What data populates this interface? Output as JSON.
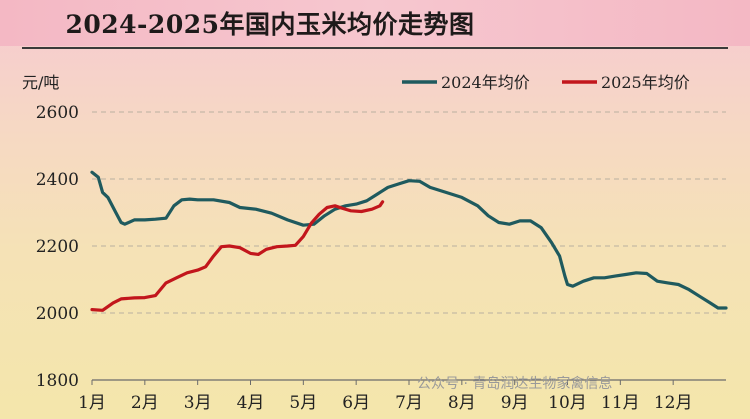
{
  "chart_data": {
    "type": "line",
    "title": "2024-2025年国内玉米均价走势图",
    "ylabel": "元/吨",
    "ylim": [
      1800,
      2600
    ],
    "yticks": [
      1800,
      2000,
      2200,
      2400,
      2600
    ],
    "categories": [
      "1月",
      "2月",
      "3月",
      "4月",
      "5月",
      "6月",
      "7月",
      "8月",
      "9月",
      "10月",
      "11月",
      "12月"
    ],
    "grid": true,
    "legend_position": "top-right",
    "series": [
      {
        "name": "2024年均价",
        "color": "#1f5a5e",
        "points": [
          [
            1.0,
            2420
          ],
          [
            1.12,
            2405
          ],
          [
            1.2,
            2360
          ],
          [
            1.3,
            2345
          ],
          [
            1.45,
            2300
          ],
          [
            1.55,
            2270
          ],
          [
            1.62,
            2265
          ],
          [
            1.8,
            2278
          ],
          [
            2.0,
            2278
          ],
          [
            2.2,
            2280
          ],
          [
            2.4,
            2283
          ],
          [
            2.55,
            2320
          ],
          [
            2.7,
            2338
          ],
          [
            2.85,
            2340
          ],
          [
            3.0,
            2338
          ],
          [
            3.3,
            2338
          ],
          [
            3.6,
            2330
          ],
          [
            3.8,
            2315
          ],
          [
            4.1,
            2310
          ],
          [
            4.4,
            2298
          ],
          [
            4.7,
            2278
          ],
          [
            5.0,
            2262
          ],
          [
            5.2,
            2265
          ],
          [
            5.4,
            2290
          ],
          [
            5.6,
            2310
          ],
          [
            5.8,
            2320
          ],
          [
            6.0,
            2325
          ],
          [
            6.2,
            2335
          ],
          [
            6.4,
            2355
          ],
          [
            6.6,
            2375
          ],
          [
            6.8,
            2385
          ],
          [
            7.0,
            2395
          ],
          [
            7.2,
            2393
          ],
          [
            7.4,
            2375
          ],
          [
            7.7,
            2360
          ],
          [
            8.0,
            2345
          ],
          [
            8.3,
            2320
          ],
          [
            8.5,
            2290
          ],
          [
            8.7,
            2270
          ],
          [
            8.9,
            2265
          ],
          [
            9.1,
            2275
          ],
          [
            9.3,
            2275
          ],
          [
            9.5,
            2255
          ],
          [
            9.7,
            2210
          ],
          [
            9.85,
            2170
          ],
          [
            9.95,
            2110
          ],
          [
            10.0,
            2085
          ],
          [
            10.1,
            2080
          ],
          [
            10.3,
            2095
          ],
          [
            10.5,
            2105
          ],
          [
            10.7,
            2105
          ],
          [
            10.9,
            2110
          ],
          [
            11.1,
            2115
          ],
          [
            11.3,
            2120
          ],
          [
            11.5,
            2118
          ],
          [
            11.7,
            2095
          ],
          [
            11.9,
            2090
          ],
          [
            12.1,
            2085
          ],
          [
            12.3,
            2070
          ],
          [
            12.5,
            2050
          ],
          [
            12.7,
            2030
          ],
          [
            12.85,
            2015
          ],
          [
            13.0,
            2015
          ]
        ]
      },
      {
        "name": "2025年均价",
        "color": "#c2161c",
        "points": [
          [
            1.0,
            2010
          ],
          [
            1.2,
            2008
          ],
          [
            1.4,
            2030
          ],
          [
            1.55,
            2042
          ],
          [
            1.8,
            2045
          ],
          [
            2.0,
            2046
          ],
          [
            2.2,
            2052
          ],
          [
            2.4,
            2090
          ],
          [
            2.6,
            2105
          ],
          [
            2.8,
            2120
          ],
          [
            3.0,
            2128
          ],
          [
            3.15,
            2138
          ],
          [
            3.3,
            2170
          ],
          [
            3.45,
            2198
          ],
          [
            3.6,
            2200
          ],
          [
            3.8,
            2195
          ],
          [
            4.0,
            2178
          ],
          [
            4.15,
            2175
          ],
          [
            4.3,
            2190
          ],
          [
            4.5,
            2198
          ],
          [
            4.7,
            2200
          ],
          [
            4.85,
            2202
          ],
          [
            5.0,
            2228
          ],
          [
            5.15,
            2268
          ],
          [
            5.3,
            2295
          ],
          [
            5.45,
            2315
          ],
          [
            5.6,
            2320
          ],
          [
            5.75,
            2312
          ],
          [
            5.9,
            2305
          ],
          [
            6.1,
            2303
          ],
          [
            6.3,
            2310
          ],
          [
            6.45,
            2320
          ],
          [
            6.5,
            2332
          ]
        ]
      }
    ]
  },
  "watermark": "公众号 · 青岛润达生物家禽信息"
}
